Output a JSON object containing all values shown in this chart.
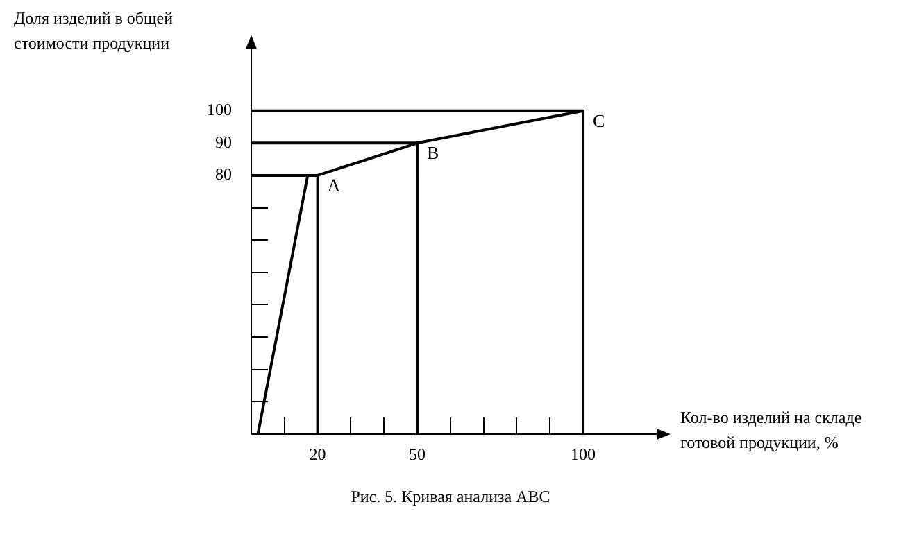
{
  "chart_data": {
    "type": "line",
    "xlabel": "Кол-во изделий на складе готовой продукции, %",
    "ylabel": "Доля изделий в общей стоимости продукции",
    "series": [
      {
        "color": "#000000",
        "x": [
          2,
          17
        ],
        "values": [
          0,
          80
        ]
      },
      {
        "color": "#000000",
        "x": [
          20,
          50,
          100
        ],
        "values": [
          80,
          90,
          100
        ]
      },
      {
        "color": "#000000",
        "x": [
          0,
          20,
          20
        ],
        "values": [
          80,
          80,
          0
        ]
      },
      {
        "color": "#000000",
        "x": [
          0,
          50,
          50
        ],
        "values": [
          90,
          90,
          0
        ]
      },
      {
        "color": "#000000",
        "x": [
          0,
          100,
          100
        ],
        "values": [
          100,
          100,
          0
        ]
      }
    ],
    "xlim": [
      0,
      123
    ],
    "ylim": [
      0,
      120
    ],
    "xticks": [
      {
        "value": 10,
        "label": null
      },
      20,
      {
        "value": 30,
        "label": null
      },
      {
        "value": 40,
        "label": null
      },
      50,
      {
        "value": 60,
        "label": null
      },
      {
        "value": 70,
        "label": null
      },
      {
        "value": 80,
        "label": null
      },
      {
        "value": 90,
        "label": null
      },
      100
    ],
    "yticks": [
      {
        "value": 10,
        "label": null
      },
      {
        "value": 20,
        "label": null
      },
      {
        "value": 30,
        "label": null
      },
      {
        "value": 40,
        "label": null
      },
      {
        "value": 50,
        "label": null
      },
      {
        "value": 60,
        "label": null
      },
      {
        "value": 70,
        "label": null
      },
      80,
      90,
      100
    ],
    "annotations": [
      {
        "text": "A",
        "x": 20,
        "y": 80
      },
      {
        "text": "B",
        "x": 50,
        "y": 90
      },
      {
        "text": "C",
        "x": 100,
        "y": 100
      },
      "Рис. 5.   Кривая анализа ABC"
    ],
    "grid": false,
    "legend": false,
    "marker": "none",
    "line_style": "solid"
  }
}
